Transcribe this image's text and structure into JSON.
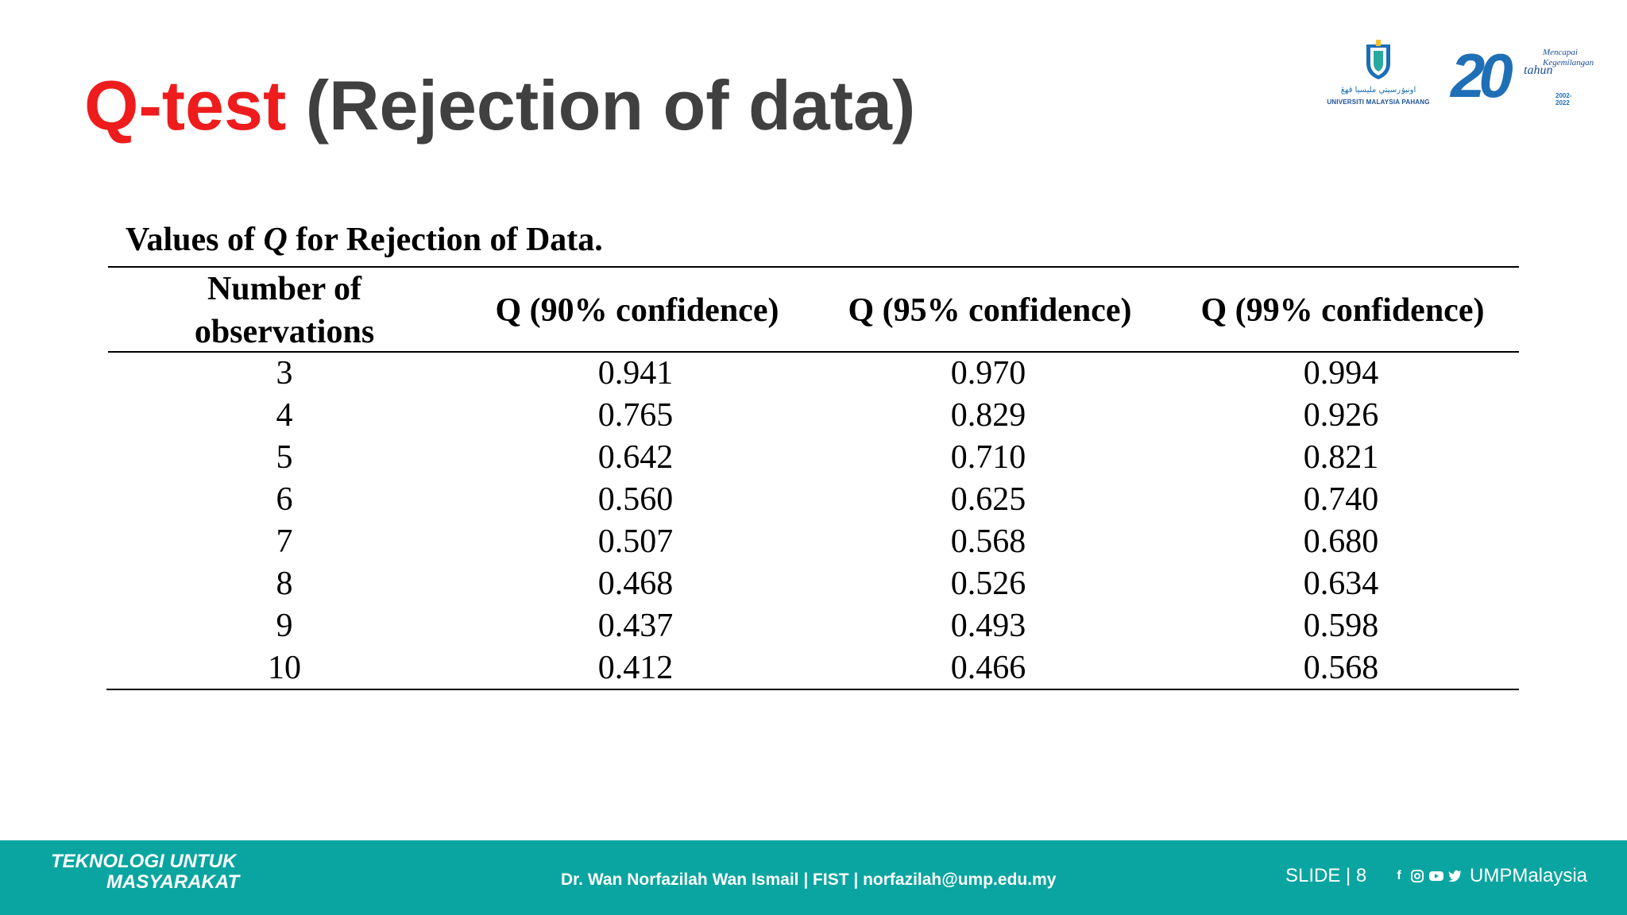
{
  "slide": {
    "title_accent": "Q-test",
    "title_rest": " (Rejection of data)"
  },
  "logos": {
    "university_arabic": "اونيۏرسيتي مليسيا قهڠ",
    "university_name": "UNIVERSITI MALAYSIA PAHANG",
    "anniversary_number": "20",
    "anniversary_word": "tahun",
    "anniversary_tagline": "Mencapai Kegemilangan",
    "anniversary_years": "2002-2022"
  },
  "table": {
    "caption_pre": "Values of ",
    "caption_q": "Q",
    "caption_post": " for Rejection of Data.",
    "headers": {
      "observations_line1": "Number of",
      "observations_line2": "observations",
      "q90": "Q (90% confidence)",
      "q95": "Q (95% confidence)",
      "q99": "Q (99% confidence)"
    },
    "rows": [
      {
        "n": "3",
        "q90": "0.941",
        "q95": "0.970",
        "q99": "0.994"
      },
      {
        "n": "4",
        "q90": "0.765",
        "q95": "0.829",
        "q99": "0.926"
      },
      {
        "n": "5",
        "q90": "0.642",
        "q95": "0.710",
        "q99": "0.821"
      },
      {
        "n": "6",
        "q90": "0.560",
        "q95": "0.625",
        "q99": "0.740"
      },
      {
        "n": "7",
        "q90": "0.507",
        "q95": "0.568",
        "q99": "0.680"
      },
      {
        "n": "8",
        "q90": "0.468",
        "q95": "0.526",
        "q99": "0.634"
      },
      {
        "n": "9",
        "q90": "0.437",
        "q95": "0.493",
        "q99": "0.598"
      },
      {
        "n": "10",
        "q90": "0.412",
        "q95": "0.466",
        "q99": "0.568"
      }
    ]
  },
  "footer": {
    "slogan_line1": "TEKNOLOGI UNTUK",
    "slogan_line2": "MASYARAKAT",
    "credit": "Dr. Wan Norfazilah Wan Ismail | FIST | norfazilah@ump.edu.my",
    "slide_label": "SLIDE | 8",
    "social_icons": [
      "facebook-icon",
      "instagram-icon",
      "youtube-icon",
      "twitter-icon"
    ],
    "handle": "UMPMalaysia"
  },
  "colors": {
    "accent_red": "#ee1c1c",
    "title_gray": "#404040",
    "footer_teal": "#0aa5a0"
  }
}
